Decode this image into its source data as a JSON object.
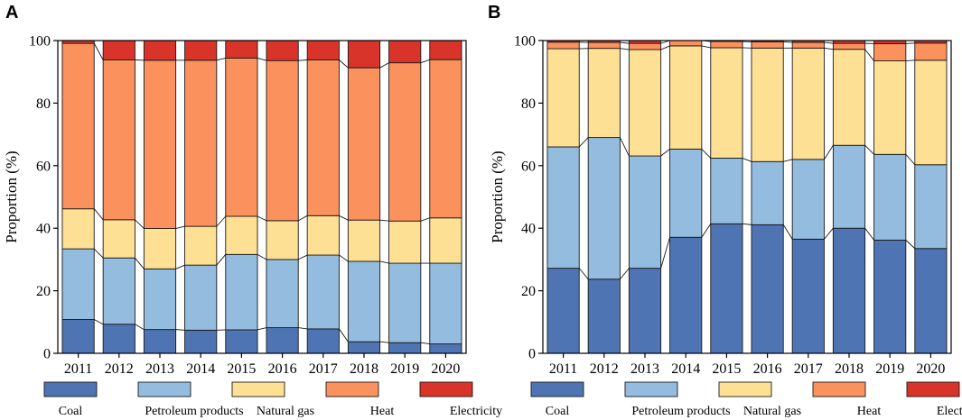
{
  "chart_data": [
    {
      "panel": "A",
      "type": "stacked-bar",
      "ylabel": "Proportion (%)",
      "xlabel": "",
      "ylim": [
        0,
        100
      ],
      "yticks": [
        0,
        20,
        40,
        60,
        80,
        100
      ],
      "categories": [
        "2011",
        "2012",
        "2013",
        "2014",
        "2015",
        "2016",
        "2017",
        "2018",
        "2019",
        "2020"
      ],
      "series": [
        {
          "name": "Coal",
          "values": [
            10.8,
            9.3,
            7.6,
            7.4,
            7.5,
            8.2,
            7.8,
            3.7,
            3.4,
            3.0
          ]
        },
        {
          "name": "Petroleum products",
          "values": [
            22.6,
            21.2,
            19.4,
            20.8,
            24.1,
            21.8,
            23.6,
            25.7,
            25.4,
            25.8
          ]
        },
        {
          "name": "Natural gas",
          "values": [
            12.8,
            12.2,
            12.9,
            12.4,
            12.2,
            12.4,
            12.6,
            13.2,
            13.5,
            14.5
          ]
        },
        {
          "name": "Heat",
          "values": [
            52.9,
            51.1,
            53.8,
            53.1,
            50.6,
            51.2,
            49.8,
            48.7,
            50.6,
            50.6
          ]
        },
        {
          "name": "Electricity",
          "values": [
            0.9,
            6.2,
            6.3,
            6.3,
            5.6,
            6.4,
            6.2,
            8.7,
            7.1,
            6.1
          ]
        }
      ]
    },
    {
      "panel": "B",
      "type": "stacked-bar",
      "ylabel": "Proportion (%)",
      "xlabel": "",
      "ylim": [
        0,
        100
      ],
      "yticks": [
        0,
        20,
        40,
        60,
        80,
        100
      ],
      "categories": [
        "2011",
        "2012",
        "2013",
        "2014",
        "2015",
        "2016",
        "2017",
        "2018",
        "2019",
        "2020"
      ],
      "series": [
        {
          "name": "Coal",
          "values": [
            27.2,
            23.7,
            27.2,
            37.1,
            41.4,
            41.1,
            36.5,
            40.0,
            36.2,
            33.5
          ]
        },
        {
          "name": "Petroleum products",
          "values": [
            38.8,
            45.3,
            35.9,
            28.2,
            21.0,
            20.2,
            25.5,
            26.5,
            27.4,
            26.8
          ]
        },
        {
          "name": "Natural gas",
          "values": [
            31.4,
            28.5,
            34.0,
            33.0,
            35.3,
            36.3,
            35.6,
            30.7,
            29.9,
            33.4
          ]
        },
        {
          "name": "Heat",
          "values": [
            2.1,
            1.9,
            2.0,
            1.7,
            2.0,
            2.0,
            1.8,
            1.9,
            5.5,
            5.5
          ]
        },
        {
          "name": "Electricity",
          "values": [
            0.5,
            0.6,
            0.9,
            0.0,
            0.3,
            0.4,
            0.6,
            0.9,
            1.0,
            0.8
          ]
        }
      ]
    }
  ],
  "legend": {
    "items": [
      {
        "name": "Coal",
        "color": "#4e74b3"
      },
      {
        "name": "Petroleum products",
        "color": "#93bcdf"
      },
      {
        "name": "Natural gas",
        "color": "#fde094"
      },
      {
        "name": "Heat",
        "color": "#fb915c"
      },
      {
        "name": "Electricity",
        "color": "#d8342a"
      }
    ]
  }
}
